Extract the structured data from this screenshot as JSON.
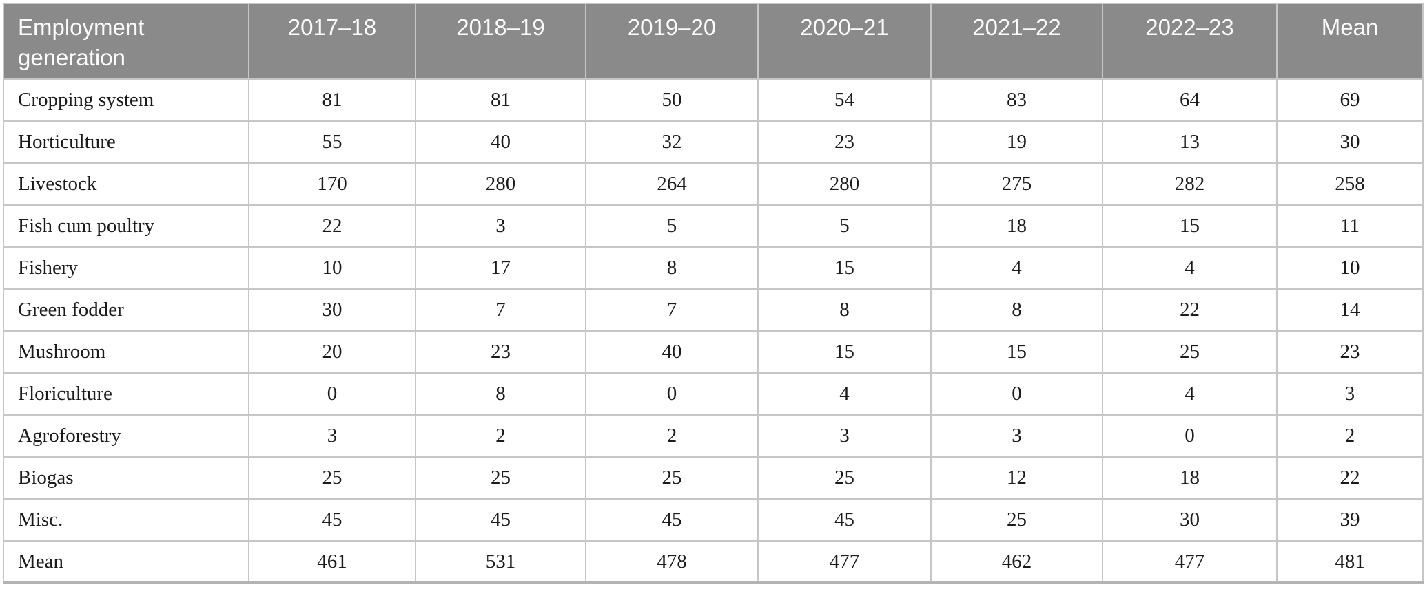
{
  "table": {
    "header": {
      "label": "Employment generation",
      "columns": [
        "2017–18",
        "2018–19",
        "2019–20",
        "2020–21",
        "2021–22",
        "2022–23",
        "Mean"
      ]
    },
    "rows": [
      {
        "label": "Cropping system",
        "values": [
          81,
          81,
          50,
          54,
          83,
          64,
          69
        ]
      },
      {
        "label": "Horticulture",
        "values": [
          55,
          40,
          32,
          23,
          19,
          13,
          30
        ]
      },
      {
        "label": "Livestock",
        "values": [
          170,
          280,
          264,
          280,
          275,
          282,
          258
        ]
      },
      {
        "label": "Fish cum poultry",
        "values": [
          22,
          3,
          5,
          5,
          18,
          15,
          11
        ]
      },
      {
        "label": "Fishery",
        "values": [
          10,
          17,
          8,
          15,
          4,
          4,
          10
        ]
      },
      {
        "label": "Green fodder",
        "values": [
          30,
          7,
          7,
          8,
          8,
          22,
          14
        ]
      },
      {
        "label": "Mushroom",
        "values": [
          20,
          23,
          40,
          15,
          15,
          25,
          23
        ]
      },
      {
        "label": "Floriculture",
        "values": [
          0,
          8,
          0,
          4,
          0,
          4,
          3
        ]
      },
      {
        "label": "Agroforestry",
        "values": [
          3,
          2,
          2,
          3,
          3,
          0,
          2
        ]
      },
      {
        "label": "Biogas",
        "values": [
          25,
          25,
          25,
          25,
          12,
          18,
          22
        ]
      },
      {
        "label": "Misc.",
        "values": [
          45,
          45,
          45,
          45,
          25,
          30,
          39
        ]
      },
      {
        "label": "Mean",
        "values": [
          461,
          531,
          478,
          477,
          462,
          477,
          481
        ]
      }
    ],
    "colors": {
      "header_bg": "#8a8a8a",
      "header_text": "#fcfcfc",
      "body_text": "#1b1b1b",
      "cell_border": "#c6c6c6",
      "bottom_rule": "#b3b3b3"
    }
  }
}
